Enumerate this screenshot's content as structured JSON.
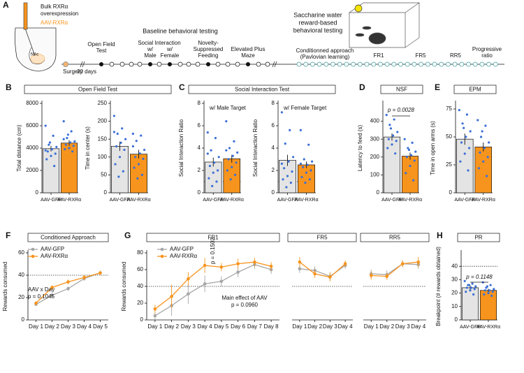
{
  "panel_a": {
    "letter": "A",
    "injection_title": [
      "Bulk RXRα",
      "overexpression"
    ],
    "virus": "AAV-RXRα",
    "region": "NAc",
    "surgery": "Surgery",
    "delay": "30 days",
    "baseline": "Baseline behavioral testing",
    "open_field": [
      "Open Field",
      "Test"
    ],
    "si_male": [
      "Social Interaction",
      "w/",
      "Male"
    ],
    "si_female": [
      "w/",
      "Female"
    ],
    "nsf": [
      "Novelty-",
      "Suppressed",
      "Feeding"
    ],
    "epm": [
      "Elevated Plus",
      "Maze"
    ],
    "reward": [
      "Saccharine water",
      "reward-based",
      "behavioral testing"
    ],
    "conditioned": [
      "Conditionned approach",
      "(Pavlovian learning)"
    ],
    "fr1": "FR1",
    "fr5": "FR5",
    "rr5": "RR5",
    "pr": [
      "Progressive",
      "ratio"
    ]
  },
  "chart_data": [
    {
      "type": "bar",
      "panel": "B",
      "title": "Open Field Test",
      "ylabel": "Total distance (cm)",
      "categories": [
        "AAV-GFP",
        "AAV-RXRα"
      ],
      "colors": [
        "#e4e4e4",
        "#f7941d"
      ],
      "values": [
        3950,
        4450
      ],
      "errors": [
        250,
        250
      ],
      "ylim": [
        0,
        8000
      ],
      "yticks": [
        0,
        2000,
        4000,
        6000,
        8000
      ],
      "points": [
        [
          6000,
          5100,
          4300,
          4100,
          3900,
          3700,
          3500,
          3300,
          3000,
          2400,
          4500,
          3800
        ],
        [
          6400,
          5500,
          4900,
          4600,
          4500,
          4300,
          4200,
          4000,
          3900,
          3700,
          5200,
          4800
        ]
      ]
    },
    {
      "type": "bar",
      "ylabel": "Time in center (s)",
      "categories": [
        "AAV-GFP",
        "AAV-RXRα"
      ],
      "colors": [
        "#e4e4e4",
        "#f7941d"
      ],
      "values": [
        130,
        108
      ],
      "errors": [
        13,
        12
      ],
      "ylim": [
        0,
        250
      ],
      "yticks": [
        0,
        50,
        100,
        150,
        200,
        250
      ],
      "points": [
        [
          215,
          180,
          165,
          150,
          140,
          130,
          120,
          100,
          80,
          60,
          45,
          170
        ],
        [
          165,
          160,
          145,
          120,
          110,
          100,
          95,
          80,
          70,
          50,
          40,
          130
        ]
      ]
    },
    {
      "type": "bar",
      "panel": "C",
      "title": "Social Interaction Test",
      "subtitle": "w/ Male Target",
      "ylabel": "Social Interaction Ratio",
      "categories": [
        "AAV-GFP",
        "AAV-RXRα"
      ],
      "colors": [
        "#e4e4e4",
        "#f7941d"
      ],
      "values": [
        2.75,
        3.05
      ],
      "errors": [
        0.4,
        0.35
      ],
      "ylim": [
        0,
        8
      ],
      "yticks": [
        0,
        2,
        4,
        6,
        8
      ],
      "reference_line": 1,
      "points": [
        [
          5.4,
          4.9,
          3.8,
          3.2,
          2.7,
          2.4,
          2.0,
          1.8,
          1.3,
          1.0,
          0.6,
          3.5
        ],
        [
          6.4,
          4.6,
          4.0,
          3.6,
          3.3,
          3.0,
          2.7,
          2.3,
          2.0,
          1.6,
          1.2,
          3.8
        ]
      ]
    },
    {
      "type": "bar",
      "subtitle": "w/ Female Target",
      "ylabel": "Social Interaction Ratio",
      "categories": [
        "AAV-GFP",
        "AAV-RXRα"
      ],
      "colors": [
        "#e4e4e4",
        "#f7941d"
      ],
      "values": [
        2.9,
        2.5
      ],
      "errors": [
        0.5,
        0.3
      ],
      "ylim": [
        0,
        8
      ],
      "yticks": [
        0,
        2,
        4,
        6,
        8
      ],
      "reference_line": 1,
      "points": [
        [
          7.2,
          5.6,
          4.4,
          3.2,
          2.8,
          2.2,
          1.9,
          1.5,
          1.2,
          0.9,
          0.5,
          2.6
        ],
        [
          5.6,
          4.3,
          3.0,
          2.8,
          2.5,
          2.3,
          2.0,
          1.8,
          1.4,
          1.2,
          0.9,
          2.6
        ]
      ]
    },
    {
      "type": "bar",
      "panel": "D",
      "title": "NSF",
      "ylabel": "Latency to feed (s)",
      "categories": [
        "AAV-GFP",
        "AAV-RXRα"
      ],
      "colors": [
        "#e4e4e4",
        "#f7941d"
      ],
      "values": [
        312,
        205
      ],
      "errors": [
        20,
        20
      ],
      "ylim": [
        0,
        500
      ],
      "yticks": [
        0,
        100,
        200,
        300,
        400
      ],
      "annotations": [
        "p = 0.0028"
      ],
      "points": [
        [
          435,
          410,
          380,
          340,
          320,
          300,
          290,
          270,
          250,
          220,
          360
        ],
        [
          300,
          280,
          250,
          230,
          210,
          200,
          180,
          150,
          110,
          70,
          240
        ]
      ]
    },
    {
      "type": "bar",
      "panel": "E",
      "title": "EPM",
      "ylabel": "Time in open arms (s)",
      "categories": [
        "AAV-GFP",
        "AAV-RXRα"
      ],
      "colors": [
        "#e4e4e4",
        "#f7941d"
      ],
      "values": [
        48,
        41
      ],
      "errors": [
        5,
        4
      ],
      "ylim": [
        0,
        80
      ],
      "yticks": [
        0,
        25,
        50,
        75
      ],
      "points": [
        [
          74,
          70,
          62,
          55,
          50,
          45,
          40,
          35,
          28,
          20,
          58
        ],
        [
          65,
          60,
          50,
          45,
          40,
          36,
          32,
          28,
          22,
          15,
          55
        ]
      ]
    },
    {
      "type": "line",
      "panel": "F",
      "title": "Conditioned Approach",
      "ylabel": "Rewards consumed",
      "categories": [
        "Day 1",
        "Day 2",
        "Day 3",
        "Day 4",
        "Day 5"
      ],
      "ylim": [
        0,
        60
      ],
      "yticks": [
        0,
        20,
        40,
        60
      ],
      "reference_line": 40,
      "annotations": [
        "AAV x Day",
        "p = 0.1045"
      ],
      "series": [
        {
          "name": "AAV-GFP",
          "color": "#a6a6a6",
          "values": [
            14,
            22,
            28,
            37,
            42
          ],
          "errors": [
            1.5,
            2,
            2,
            2,
            2
          ]
        },
        {
          "name": "AAV-RXRα",
          "color": "#f7941d",
          "values": [
            15,
            29,
            34,
            38,
            42
          ],
          "errors": [
            1.5,
            2,
            2,
            2,
            2
          ]
        }
      ]
    },
    {
      "type": "line",
      "panel": "G",
      "title": "FR1",
      "ylabel": "Rewards consumed",
      "categories": [
        "Day 1",
        "Day 2",
        "Day 3",
        "Day 4",
        "Day 5",
        "Day 6",
        "Day 7",
        "Day 8"
      ],
      "ylim": [
        0,
        80
      ],
      "yticks": [
        0,
        20,
        40,
        60,
        80
      ],
      "reference_line": 40,
      "annotations": [
        "p = 0.1502",
        "Main effect of AAV",
        "p = 0.0960"
      ],
      "series": [
        {
          "name": "AAV-GFP",
          "color": "#a6a6a6",
          "values": [
            5,
            17,
            31,
            43,
            46,
            57,
            66,
            60
          ],
          "errors": [
            5,
            12,
            12,
            10,
            6,
            6,
            5,
            5
          ]
        },
        {
          "name": "AAV-RXRα",
          "color": "#f7941d",
          "values": [
            13,
            28,
            49,
            65,
            63,
            67,
            69,
            64
          ],
          "errors": [
            5,
            14,
            8,
            9,
            5,
            6,
            5,
            5
          ]
        }
      ]
    },
    {
      "type": "line",
      "title": "FR5",
      "categories": [
        "Day 1",
        "Day 2",
        "Day 3",
        "Day 4"
      ],
      "ylim": [
        0,
        80
      ],
      "reference_line": 40,
      "series": [
        {
          "name": "AAV-GFP",
          "color": "#a6a6a6",
          "values": [
            61,
            59,
            52,
            65
          ],
          "errors": [
            5,
            5,
            5,
            4
          ]
        },
        {
          "name": "AAV-RXRα",
          "color": "#f7941d",
          "values": [
            69,
            55,
            51,
            67
          ],
          "errors": [
            6,
            5,
            5,
            4
          ]
        }
      ]
    },
    {
      "type": "line",
      "title": "RR5",
      "categories": [
        "Day 1",
        "Day 2",
        "Day 3",
        "Day 4"
      ],
      "ylim": [
        0,
        80
      ],
      "reference_line": 40,
      "series": [
        {
          "name": "AAV-GFP",
          "color": "#a6a6a6",
          "values": [
            55,
            54,
            67,
            66
          ],
          "errors": [
            5,
            5,
            4,
            5
          ]
        },
        {
          "name": "AAV-RXRα",
          "color": "#f7941d",
          "values": [
            53,
            52,
            67,
            69
          ],
          "errors": [
            5,
            4,
            4,
            6
          ]
        }
      ]
    },
    {
      "type": "bar",
      "panel": "H",
      "title": "PR",
      "ylabel": "Breakpoint (# rewards obtained)",
      "categories": [
        "AAV-GFP",
        "AAV-RXRα"
      ],
      "colors": [
        "#e4e4e4",
        "#f7941d"
      ],
      "values": [
        24,
        22
      ],
      "errors": [
        1.5,
        1.2
      ],
      "ylim": [
        0,
        50
      ],
      "yticks": [
        0,
        10,
        20,
        30,
        40
      ],
      "reference_line": 40,
      "annotations": [
        "p = 0.1148"
      ],
      "points": [
        [
          29,
          27,
          26,
          25,
          24,
          24,
          23,
          22,
          21,
          19,
          26
        ],
        [
          28,
          26,
          24,
          23,
          22,
          22,
          21,
          20,
          19,
          18,
          25
        ]
      ]
    }
  ]
}
